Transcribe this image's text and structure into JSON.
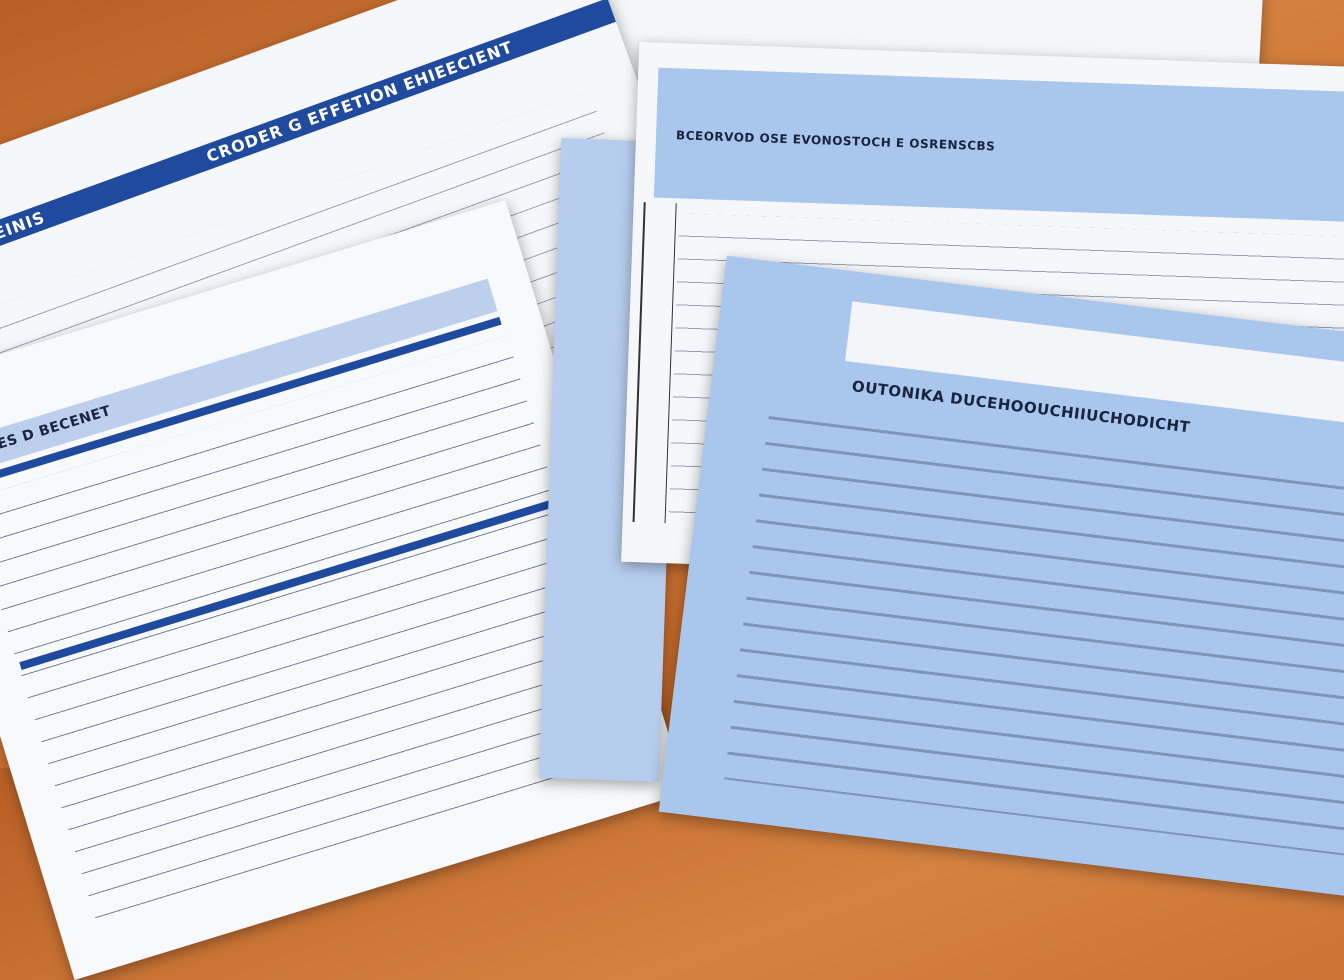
{
  "documents": [
    {
      "banner_left": "EETIIBIRG CIEINIS",
      "banner_right": "CRODER G EFFETION EHIEECIENT"
    },
    {
      "header": "DECES D BECENET"
    },
    {
      "header": "BCEORVOD OSE EVONOSTOCH E OSRENSCBS"
    },
    {
      "header": "OUTONIKA DUCEHOOUCHIIUCHODICHT"
    }
  ],
  "colors": {
    "desk": "#c8702f",
    "banner": "#1f4a9e",
    "light_blue": "#a9c6ec",
    "paper": "#f6f8fb"
  }
}
